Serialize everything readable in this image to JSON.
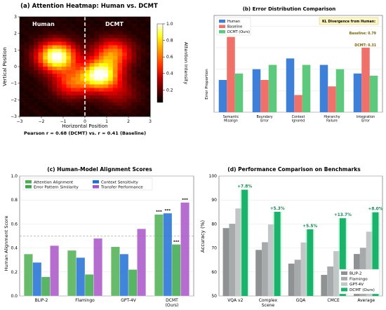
{
  "chart_data": [
    {
      "type": "heatmap",
      "title": "(a) Attention Heatmap: Human vs. DCMT",
      "xlabel": "Horizontal Position",
      "ylabel": "Vertical Position",
      "xlim": [
        -3,
        3
      ],
      "ylim": [
        -3,
        3
      ],
      "x_ticks": [
        "−3",
        "−2",
        "−1",
        "0",
        "1",
        "2",
        "3"
      ],
      "y_ticks": [
        "−3",
        "−2",
        "−1",
        "0",
        "1",
        "2",
        "3"
      ],
      "region_labels": [
        "Human",
        "DCMT"
      ],
      "blobs": [
        {
          "x": -1.3,
          "y": 0.6,
          "amplitude": 1.0
        },
        {
          "x": -0.6,
          "y": -1.0,
          "amplitude": 0.45
        },
        {
          "x": 1.3,
          "y": 0.8,
          "amplitude": 0.55
        },
        {
          "x": 0.7,
          "y": -0.5,
          "amplitude": 0.95
        },
        {
          "x": 1.6,
          "y": -1.6,
          "amplitude": 0.2
        }
      ],
      "colorbar": {
        "label": "Attention Intensity",
        "ticks": [
          "0.2",
          "0.4",
          "0.6",
          "0.8",
          "1.0"
        ],
        "range": [
          0.05,
          1.0
        ]
      },
      "caption": "Pearson r = 0.68 (DCMT) vs. r = 0.41 (Baseline)",
      "colors": {
        "divider": "#ffffff"
      }
    },
    {
      "type": "bar",
      "title": "(b) Error Distribution Comparison",
      "ylabel": "Error Proportion",
      "ylim": [
        0,
        0.45
      ],
      "grid": true,
      "legend": "top-left",
      "categories": [
        "Semantic\nMisalign",
        "Boundary\nError",
        "Context\nIgnored",
        "Hierarchy\nFailure",
        "Integration\nError"
      ],
      "series": [
        {
          "name": "Human",
          "color": "#3d7fd9",
          "values": [
            0.15,
            0.2,
            0.25,
            0.22,
            0.18
          ]
        },
        {
          "name": "Baseline",
          "color": "#f0706a",
          "values": [
            0.35,
            0.15,
            0.08,
            0.12,
            0.3
          ]
        },
        {
          "name": "DCMT (Ours)",
          "color": "#5cc97c",
          "values": [
            0.18,
            0.22,
            0.22,
            0.2,
            0.17
          ]
        }
      ],
      "annotation_box": {
        "title": "KL Divergence from Human:",
        "lines": [
          "Baseline: 0.79",
          "DCMT: 0.31"
        ]
      }
    },
    {
      "type": "bar",
      "title": "(c) Human-Model Alignment Scores",
      "ylabel": "Human Alignment Score",
      "ylim": [
        0,
        1.0
      ],
      "y_ticks": [
        "0.0",
        "0.2",
        "0.4",
        "0.6",
        "0.8",
        "1.0"
      ],
      "grid": true,
      "legend": "top",
      "reference_line": 0.5,
      "categories": [
        "BLIP-2",
        "Flamingo",
        "GPT-4V",
        "DCMT\n(Ours)"
      ],
      "series": [
        {
          "name": "Attention Alignment",
          "color": "#4caf50",
          "values": [
            0.35,
            0.38,
            0.41,
            0.68
          ]
        },
        {
          "name": "Context Sensitivity",
          "color": "#1f6fd6",
          "values": [
            0.28,
            0.32,
            0.35,
            0.69
          ]
        },
        {
          "name": "Error Pattern Similarity",
          "color": "#3aa84a",
          "values": [
            0.16,
            0.18,
            0.22,
            0.43
          ]
        },
        {
          "name": "Transfer Performance",
          "color": "#a855c8",
          "values": [
            0.42,
            0.48,
            0.56,
            0.78
          ]
        }
      ],
      "significance": "***"
    },
    {
      "type": "bar",
      "title": "(d) Performance Comparison on Benchmarks",
      "ylabel": "Accuracy (%)",
      "ylim": [
        50,
        100
      ],
      "y_ticks": [
        "50",
        "60",
        "70",
        "80",
        "90",
        "100"
      ],
      "grid": true,
      "legend": "bottom-right",
      "categories": [
        "VQA v2",
        "Complex\nScene",
        "GQA",
        "CMCE",
        "Average"
      ],
      "series": [
        {
          "name": "BLIP-2",
          "color": "#8f9293",
          "values": [
            78.3,
            69.2,
            63.5,
            58.8,
            67.5
          ]
        },
        {
          "name": "Flamingo",
          "color": "#a7aaab",
          "values": [
            80.1,
            72.4,
            65.1,
            62.3,
            70.1
          ]
        },
        {
          "name": "GPT-4V",
          "color": "#c3c6c7",
          "values": [
            86.5,
            79.8,
            72.3,
            68.7,
            76.8
          ]
        },
        {
          "name": "DCMT (Ours)",
          "color": "#19b36b",
          "values": [
            94.3,
            85.1,
            77.8,
            82.4,
            84.9
          ]
        }
      ],
      "improvement_labels": [
        "+7.8%",
        "+5.3%",
        "+5.5%",
        "+13.7%",
        "+8.0%"
      ]
    }
  ]
}
